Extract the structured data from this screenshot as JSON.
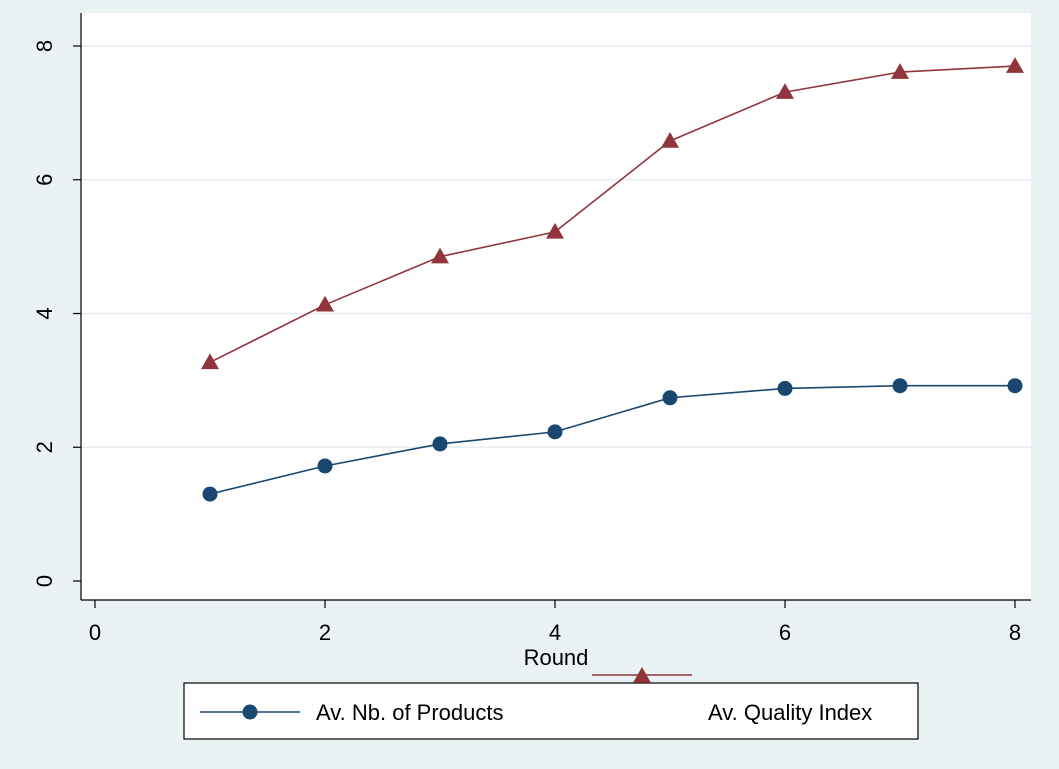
{
  "chart_data": {
    "type": "line",
    "xlabel": "Round",
    "ylabel": "",
    "xlim": [
      0,
      8
    ],
    "ylim": [
      0,
      8
    ],
    "xticks": [
      "0",
      "2",
      "4",
      "6",
      "8"
    ],
    "yticks": [
      "0",
      "2",
      "4",
      "6",
      "8"
    ],
    "grid": "horizontal",
    "legend_position": "bottom",
    "x": [
      1,
      2,
      3,
      4,
      5,
      6,
      7,
      8
    ],
    "series": [
      {
        "name": "Av. Nb. of Products",
        "marker": "circle",
        "color": "#1a476f",
        "values": [
          1.3,
          1.72,
          2.05,
          2.23,
          2.74,
          2.88,
          2.92,
          2.92
        ]
      },
      {
        "name": "Av. Quality Index",
        "marker": "triangle",
        "color": "#90353b",
        "values": [
          3.27,
          4.13,
          4.85,
          5.22,
          6.58,
          7.31,
          7.61,
          7.7
        ]
      }
    ]
  }
}
